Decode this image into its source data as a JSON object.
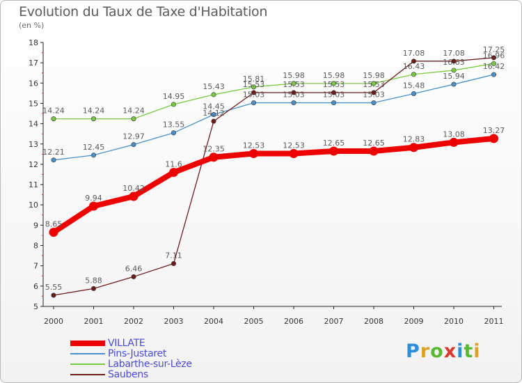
{
  "title": "Evolution du Taux de Taxe d'Habitation",
  "unit_label": "(en %)",
  "logo": {
    "letters": [
      {
        "ch": "P",
        "color": "#2a8fd8"
      },
      {
        "ch": "r",
        "color": "#e0a020"
      },
      {
        "ch": "o",
        "color": "#5ab832"
      },
      {
        "ch": "x",
        "color": "#d83a2a"
      },
      {
        "ch": "i",
        "color": "#2a8fd8"
      },
      {
        "ch": "t",
        "color": "#5ab832"
      },
      {
        "ch": "i",
        "color": "#e0a020"
      }
    ]
  },
  "chart_data": {
    "type": "line",
    "title": "Evolution du Taux de Taxe d'Habitation",
    "ylabel": "(en %)",
    "xlabel": "",
    "x": [
      "2000",
      "2001",
      "2002",
      "2003",
      "2004",
      "2005",
      "2006",
      "2007",
      "2008",
      "2009",
      "2010",
      "2011"
    ],
    "ylim": [
      5,
      18
    ],
    "yticks": [
      5,
      6,
      7,
      8,
      9,
      10,
      11,
      12,
      13,
      14,
      15,
      16,
      17,
      18
    ],
    "grid": false,
    "legend": "bottom-left",
    "series": [
      {
        "name": "VILLATE",
        "color": "#ee0000",
        "emphasis": true,
        "values": [
          8.65,
          9.94,
          10.42,
          11.6,
          12.35,
          12.53,
          12.53,
          12.65,
          12.65,
          12.83,
          13.08,
          13.27
        ],
        "labels": [
          "8.65",
          "9.94",
          "10.42",
          "11.6",
          "12.35",
          "12.53",
          "12.53",
          "12.65",
          "12.65",
          "12.83",
          "13.08",
          "13.27"
        ]
      },
      {
        "name": "Pins-Justaret",
        "color": "#4a90c8",
        "emphasis": false,
        "values": [
          12.21,
          12.45,
          12.97,
          13.55,
          14.45,
          15.03,
          15.03,
          15.03,
          15.03,
          15.48,
          15.94,
          16.42
        ],
        "labels": [
          "12.21",
          "12.45",
          "12.97",
          "13.55",
          "14.45",
          "15.03",
          "15.03",
          "15.03",
          "15.03",
          "15.48",
          "15.94",
          "16.42"
        ]
      },
      {
        "name": "Labarthe-sur-Lèze",
        "color": "#7ac943",
        "emphasis": false,
        "values": [
          14.24,
          14.24,
          14.24,
          14.95,
          15.43,
          15.81,
          15.98,
          15.98,
          15.98,
          16.43,
          16.63,
          16.96
        ],
        "labels": [
          "14.24",
          "14.24",
          "14.24",
          "14.95",
          "15.43",
          "15.81",
          "15.98",
          "15.98",
          "15.98",
          "16.43",
          "16.63",
          "16.96"
        ]
      },
      {
        "name": "Saubens",
        "color": "#6e1b1b",
        "emphasis": false,
        "values": [
          5.55,
          5.88,
          6.46,
          7.11,
          14.12,
          15.53,
          15.53,
          15.53,
          15.53,
          17.08,
          17.08,
          17.25
        ],
        "labels": [
          "5.55",
          "5.88",
          "6.46",
          "7.11",
          "14.12",
          "15.53",
          "15.53",
          "15.53",
          "15.53",
          "17.08",
          "17.08",
          "17.25"
        ]
      }
    ]
  }
}
